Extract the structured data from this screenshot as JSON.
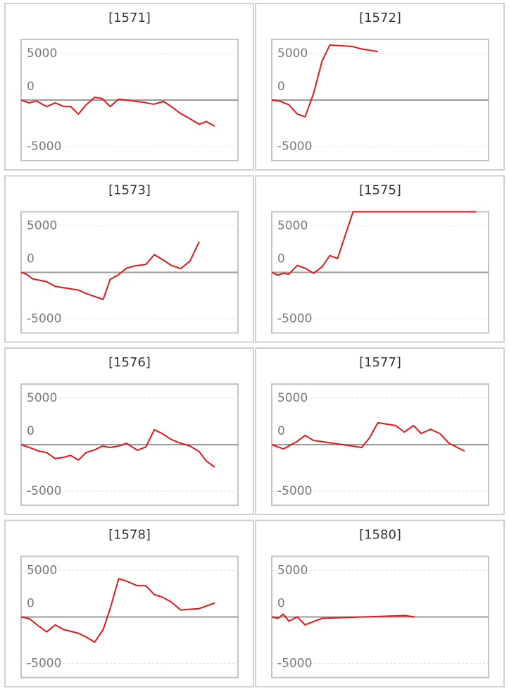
{
  "chart_data": [
    {
      "type": "line",
      "title": "[1571]",
      "color": "#e8161b",
      "xlim": [
        0,
        28
      ],
      "ylim": [
        -6500,
        6500
      ],
      "yticks": [
        -5000,
        0,
        5000
      ],
      "grid": true,
      "x": [
        0,
        1,
        2,
        3.3,
        4.4,
        5.5,
        6.4,
        7.4,
        8.4,
        9.5,
        10.5,
        11.5,
        12.6,
        14.5,
        15.9,
        17.1,
        18.4,
        19.4,
        20.6,
        21.8,
        23,
        23.9,
        25
      ],
      "values": [
        0,
        -300,
        -100,
        -700,
        -300,
        -700,
        -700,
        -1500,
        -500,
        300,
        150,
        -700,
        100,
        -100,
        -250,
        -450,
        -150,
        -700,
        -1450,
        -2000,
        -2600,
        -2300,
        -2800
      ]
    },
    {
      "type": "line",
      "title": "[1572]",
      "color": "#e8161b",
      "xlim": [
        0,
        28
      ],
      "ylim": [
        -6500,
        6500
      ],
      "yticks": [
        -5000,
        0,
        5000
      ],
      "grid": true,
      "x": [
        0,
        1,
        2.2,
        3.3,
        4.3,
        5.4,
        6.5,
        7.5,
        10.4,
        11.5,
        13.7
      ],
      "values": [
        0,
        -100,
        -500,
        -1500,
        -1800,
        700,
        4200,
        5900,
        5750,
        5500,
        5200
      ]
    },
    {
      "type": "line",
      "title": "[1573]",
      "color": "#e8161b",
      "xlim": [
        0,
        28
      ],
      "ylim": [
        -6500,
        6500
      ],
      "yticks": [
        -5000,
        0,
        5000
      ],
      "grid": true,
      "x": [
        0,
        0.7,
        1.5,
        3.3,
        4.4,
        7.4,
        8.5,
        10.6,
        11.5,
        12.5,
        13.6,
        14.7,
        16.1,
        17.2,
        18.3,
        19.4,
        20.6,
        21.8,
        23
      ],
      "values": [
        0,
        -200,
        -700,
        -1000,
        -1500,
        -1900,
        -2300,
        -2900,
        -750,
        -300,
        450,
        700,
        850,
        1900,
        1350,
        750,
        400,
        1200,
        3300
      ]
    },
    {
      "type": "line",
      "title": "[1575]",
      "color": "#e8161b",
      "xlim": [
        0,
        28
      ],
      "ylim": [
        -6500,
        6500
      ],
      "yticks": [
        -5000,
        0,
        5000
      ],
      "grid": true,
      "x": [
        0,
        0.8,
        1.5,
        2.2,
        3.3,
        4.3,
        5.4,
        6.5,
        7.5,
        8.5,
        9.5,
        10.5,
        26.4
      ],
      "values": [
        0,
        -300,
        -100,
        -200,
        750,
        450,
        -100,
        600,
        1800,
        1500,
        4000,
        6500,
        6500
      ]
    },
    {
      "type": "line",
      "title": "[1576]",
      "color": "#e8161b",
      "xlim": [
        0,
        28
      ],
      "ylim": [
        -6500,
        6500
      ],
      "yticks": [
        -5000,
        0,
        5000
      ],
      "grid": true,
      "x": [
        0,
        1.4,
        2.3,
        3.3,
        4.4,
        5.5,
        6.4,
        7.4,
        8.4,
        9.5,
        10.5,
        11.5,
        12.6,
        13.6,
        15,
        16.1,
        17.2,
        18.3,
        19.4,
        20.6,
        21.8,
        23,
        23.9,
        25
      ],
      "values": [
        0,
        -400,
        -700,
        -850,
        -1500,
        -1350,
        -1150,
        -1650,
        -850,
        -550,
        -150,
        -300,
        -150,
        150,
        -600,
        -250,
        1600,
        1150,
        550,
        150,
        -150,
        -750,
        -1750,
        -2400
      ]
    },
    {
      "type": "line",
      "title": "[1577]",
      "color": "#e8161b",
      "xlim": [
        0,
        28
      ],
      "ylim": [
        -6500,
        6500
      ],
      "yticks": [
        -5000,
        0,
        5000
      ],
      "grid": true,
      "x": [
        0,
        1.5,
        3.2,
        4.3,
        5.4,
        11.6,
        12.6,
        13.7,
        16,
        17.1,
        18.3,
        19.3,
        20.5,
        21.7,
        22.9,
        24.9
      ],
      "values": [
        0,
        -450,
        300,
        1000,
        450,
        -300,
        700,
        2350,
        2050,
        1350,
        2050,
        1200,
        1650,
        1200,
        150,
        -700
      ]
    },
    {
      "type": "line",
      "title": "[1578]",
      "color": "#e8161b",
      "xlim": [
        0,
        28
      ],
      "ylim": [
        -6500,
        6500
      ],
      "yticks": [
        -5000,
        0,
        5000
      ],
      "grid": true,
      "x": [
        0,
        1.1,
        2.3,
        3.3,
        4.4,
        5.5,
        7.4,
        8.5,
        9.5,
        10.6,
        11.5,
        12.6,
        13.6,
        15,
        16.1,
        17.2,
        18.3,
        19.4,
        20.6,
        23,
        25
      ],
      "values": [
        0,
        -200,
        -1000,
        -1600,
        -850,
        -1350,
        -1750,
        -2200,
        -2700,
        -1350,
        900,
        4100,
        3850,
        3350,
        3350,
        2400,
        2100,
        1600,
        750,
        900,
        1500
      ]
    },
    {
      "type": "line",
      "title": "[1580]",
      "color": "#e8161b",
      "xlim": [
        0,
        28
      ],
      "ylim": [
        -6500,
        6500
      ],
      "yticks": [
        -5000,
        0,
        5000
      ],
      "grid": true,
      "x": [
        0,
        0.8,
        1.5,
        2.2,
        3.3,
        4.3,
        6.5,
        17.2,
        18.5
      ],
      "values": [
        0,
        -150,
        300,
        -450,
        0,
        -850,
        -150,
        150,
        0
      ]
    }
  ]
}
